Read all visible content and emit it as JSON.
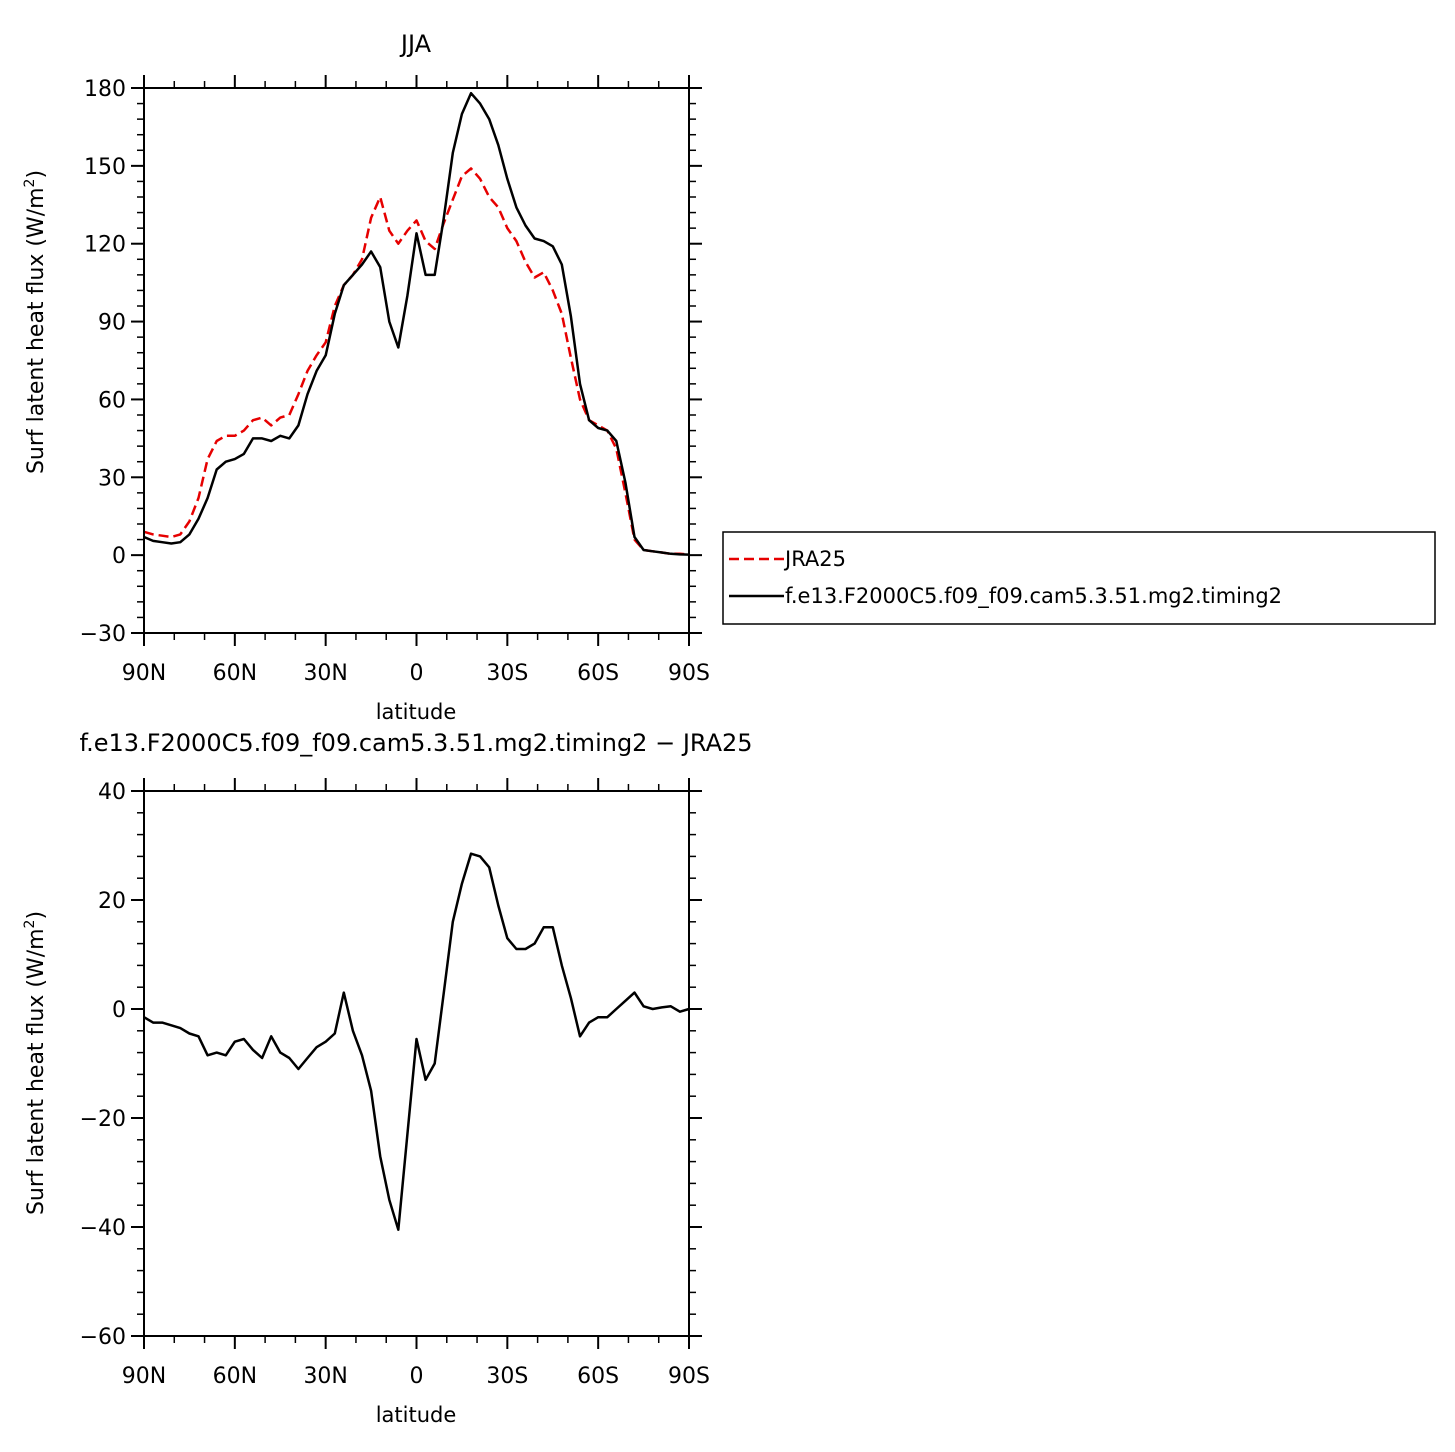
{
  "chart_data": [
    {
      "type": "line",
      "title": "JJA",
      "xlabel": "latitude",
      "ylabel_main": "Surf latent heat flux (W/m",
      "ylabel_sup": "2",
      "ylabel_close": ")",
      "xlim": [
        90,
        -90
      ],
      "ylim": [
        -30,
        180
      ],
      "xticks": [
        90,
        60,
        30,
        0,
        -30,
        -60,
        -90
      ],
      "xtick_labels": [
        "90N",
        "60N",
        "30N",
        "0",
        "30S",
        "60S",
        "90S"
      ],
      "yticks": [
        -30,
        0,
        30,
        60,
        90,
        120,
        150,
        180
      ],
      "ytick_labels": [
        "−30",
        "0",
        "30",
        "60",
        "90",
        "120",
        "150",
        "180"
      ],
      "legend_position": "right",
      "series": [
        {
          "name": "JRA25",
          "color": "#e60000",
          "style": "dashed",
          "x": [
            90,
            87,
            84,
            81,
            78,
            75,
            72,
            69,
            66,
            63,
            60,
            57,
            54,
            51,
            48,
            45,
            42,
            39,
            36,
            33,
            30,
            27,
            24,
            21,
            18,
            15,
            12,
            9,
            6,
            3,
            0,
            -3,
            -6,
            -9,
            -12,
            -15,
            -18,
            -21,
            -24,
            -27,
            -30,
            -33,
            -36,
            -39,
            -42,
            -45,
            -48,
            -51,
            -54,
            -57,
            -60,
            -63,
            -66,
            -69,
            -72,
            -75,
            -78,
            -81,
            -84,
            -87,
            -90
          ],
          "y": [
            9,
            8,
            7.5,
            7,
            8,
            13,
            22,
            37,
            44,
            46,
            46,
            48,
            52,
            53,
            50,
            53,
            54,
            62,
            71,
            77,
            82,
            96,
            104,
            108,
            114,
            130,
            138,
            125,
            120,
            125,
            129,
            121,
            118,
            128,
            137,
            146,
            149,
            145,
            138,
            134,
            126,
            121,
            113,
            107,
            109,
            102,
            93,
            76,
            60,
            52,
            50,
            48,
            41,
            24,
            6,
            2,
            1.5,
            1,
            0.5,
            0.5,
            0.3
          ]
        },
        {
          "name": "f.e13.F2000C5.f09_f09.cam5.3.51.mg2.timing2",
          "color": "#000000",
          "style": "solid",
          "x": [
            90,
            87,
            84,
            81,
            78,
            75,
            72,
            69,
            66,
            63,
            60,
            57,
            54,
            51,
            48,
            45,
            42,
            39,
            36,
            33,
            30,
            27,
            24,
            21,
            18,
            15,
            12,
            9,
            6,
            3,
            0,
            -3,
            -6,
            -9,
            -12,
            -15,
            -18,
            -21,
            -24,
            -27,
            -30,
            -33,
            -36,
            -39,
            -42,
            -45,
            -48,
            -51,
            -54,
            -57,
            -60,
            -63,
            -66,
            -69,
            -72,
            -75,
            -78,
            -81,
            -84,
            -87,
            -90
          ],
          "y": [
            7,
            5.5,
            5,
            4.5,
            5,
            8,
            14,
            22,
            33,
            36,
            37,
            39,
            45,
            45,
            44,
            46,
            45,
            50,
            62,
            71,
            77,
            93,
            104,
            108,
            112,
            117,
            111,
            90,
            80,
            100,
            124,
            108,
            108,
            130,
            155,
            170,
            178,
            174,
            168,
            158,
            145,
            134,
            127,
            122,
            121,
            119,
            112,
            92,
            66,
            52,
            49,
            48,
            44,
            28,
            7,
            2,
            1.5,
            1,
            0.5,
            0.3,
            0.2
          ]
        }
      ]
    },
    {
      "type": "line",
      "title": "f.e13.F2000C5.f09_f09.cam5.3.51.mg2.timing2 − JRA25",
      "xlabel": "latitude",
      "ylabel_main": "Surf latent heat flux (W/m",
      "ylabel_sup": "2",
      "ylabel_close": ")",
      "xlim": [
        90,
        -90
      ],
      "ylim": [
        -60,
        40
      ],
      "xticks": [
        90,
        60,
        30,
        0,
        -30,
        -60,
        -90
      ],
      "xtick_labels": [
        "90N",
        "60N",
        "30N",
        "0",
        "30S",
        "60S",
        "90S"
      ],
      "yticks": [
        -60,
        -40,
        -20,
        0,
        20,
        40
      ],
      "ytick_labels": [
        "−60",
        "−40",
        "−20",
        "0",
        "20",
        "40"
      ],
      "series": [
        {
          "color": "#000000",
          "style": "solid",
          "x": [
            90,
            87,
            84,
            81,
            78,
            75,
            72,
            69,
            66,
            63,
            60,
            57,
            54,
            51,
            48,
            45,
            42,
            39,
            36,
            33,
            30,
            27,
            24,
            21,
            18,
            15,
            12,
            9,
            6,
            3,
            0,
            -3,
            -6,
            -9,
            -12,
            -15,
            -18,
            -21,
            -24,
            -27,
            -30,
            -33,
            -36,
            -39,
            -42,
            -45,
            -48,
            -51,
            -54,
            -57,
            -60,
            -63,
            -66,
            -69,
            -72,
            -75,
            -78,
            -81,
            -84,
            -87,
            -90
          ],
          "y": [
            -1.5,
            -2.5,
            -2.5,
            -3,
            -3.5,
            -4.5,
            -5,
            -8.5,
            -8,
            -8.5,
            -6,
            -5.5,
            -7.5,
            -9,
            -5,
            -8,
            -9,
            -11,
            -9,
            -7,
            -6,
            -4.5,
            3,
            -4,
            -8.5,
            -15,
            -27,
            -35,
            -40.5,
            -23,
            -5.5,
            -13,
            -10,
            3,
            16,
            23,
            28.5,
            28,
            26,
            19,
            13,
            11,
            11,
            12,
            15,
            15,
            8,
            2,
            -5,
            -2.5,
            -1.5,
            -1.5,
            0,
            1.5,
            3,
            0.5,
            0,
            0.3,
            0.5,
            -0.5,
            0
          ]
        }
      ]
    }
  ]
}
